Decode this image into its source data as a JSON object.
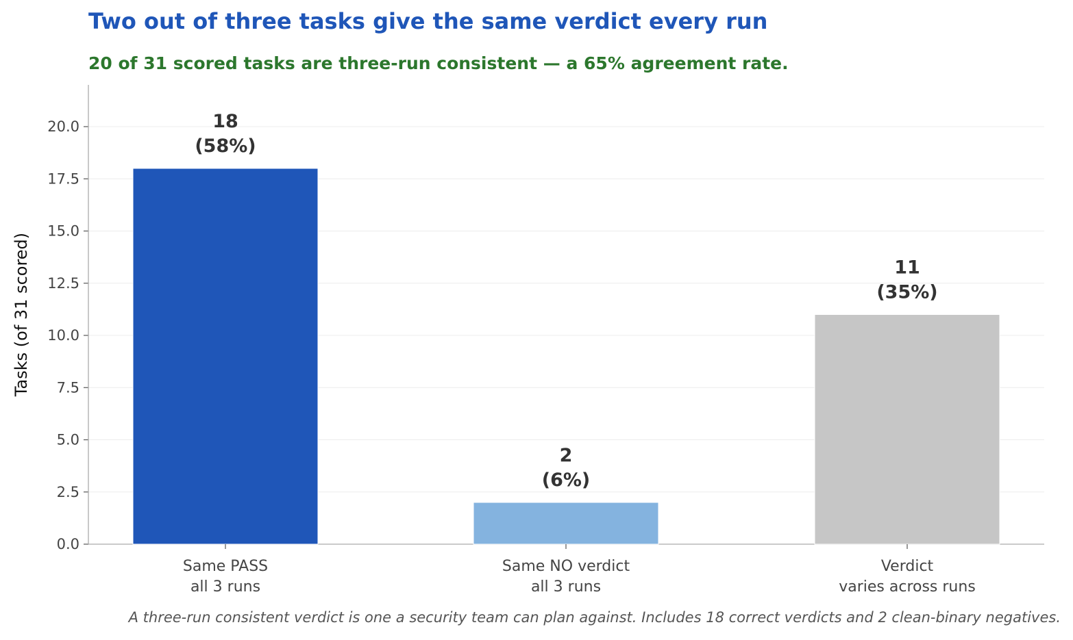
{
  "chart_data": {
    "type": "bar",
    "title": "Two out of three tasks give the same verdict every run",
    "subtitle": "20 of 31 scored tasks are three-run consistent — a 65% agreement rate.",
    "ylabel": "Tasks (of 31 scored)",
    "xlabel": "",
    "ylim": [
      0,
      22
    ],
    "yticks": [
      "0.0",
      "2.5",
      "5.0",
      "7.5",
      "10.0",
      "12.5",
      "15.0",
      "17.5",
      "20.0"
    ],
    "categories": [
      [
        "Same PASS",
        "all 3 runs"
      ],
      [
        "Same NO verdict",
        "all 3 runs"
      ],
      [
        "Verdict",
        "varies across runs"
      ]
    ],
    "values": [
      18,
      2,
      11
    ],
    "value_labels": [
      [
        "18",
        "(58%)"
      ],
      [
        "2",
        "(6%)"
      ],
      [
        "11",
        "(35%)"
      ]
    ],
    "colors": [
      "#1f56b8",
      "#84b3df",
      "#c6c6c6"
    ],
    "grid": "horizontal",
    "footnote": "A three-run consistent verdict is one a security team can plan against. Includes 18 correct verdicts and 2 clean-binary negatives."
  }
}
